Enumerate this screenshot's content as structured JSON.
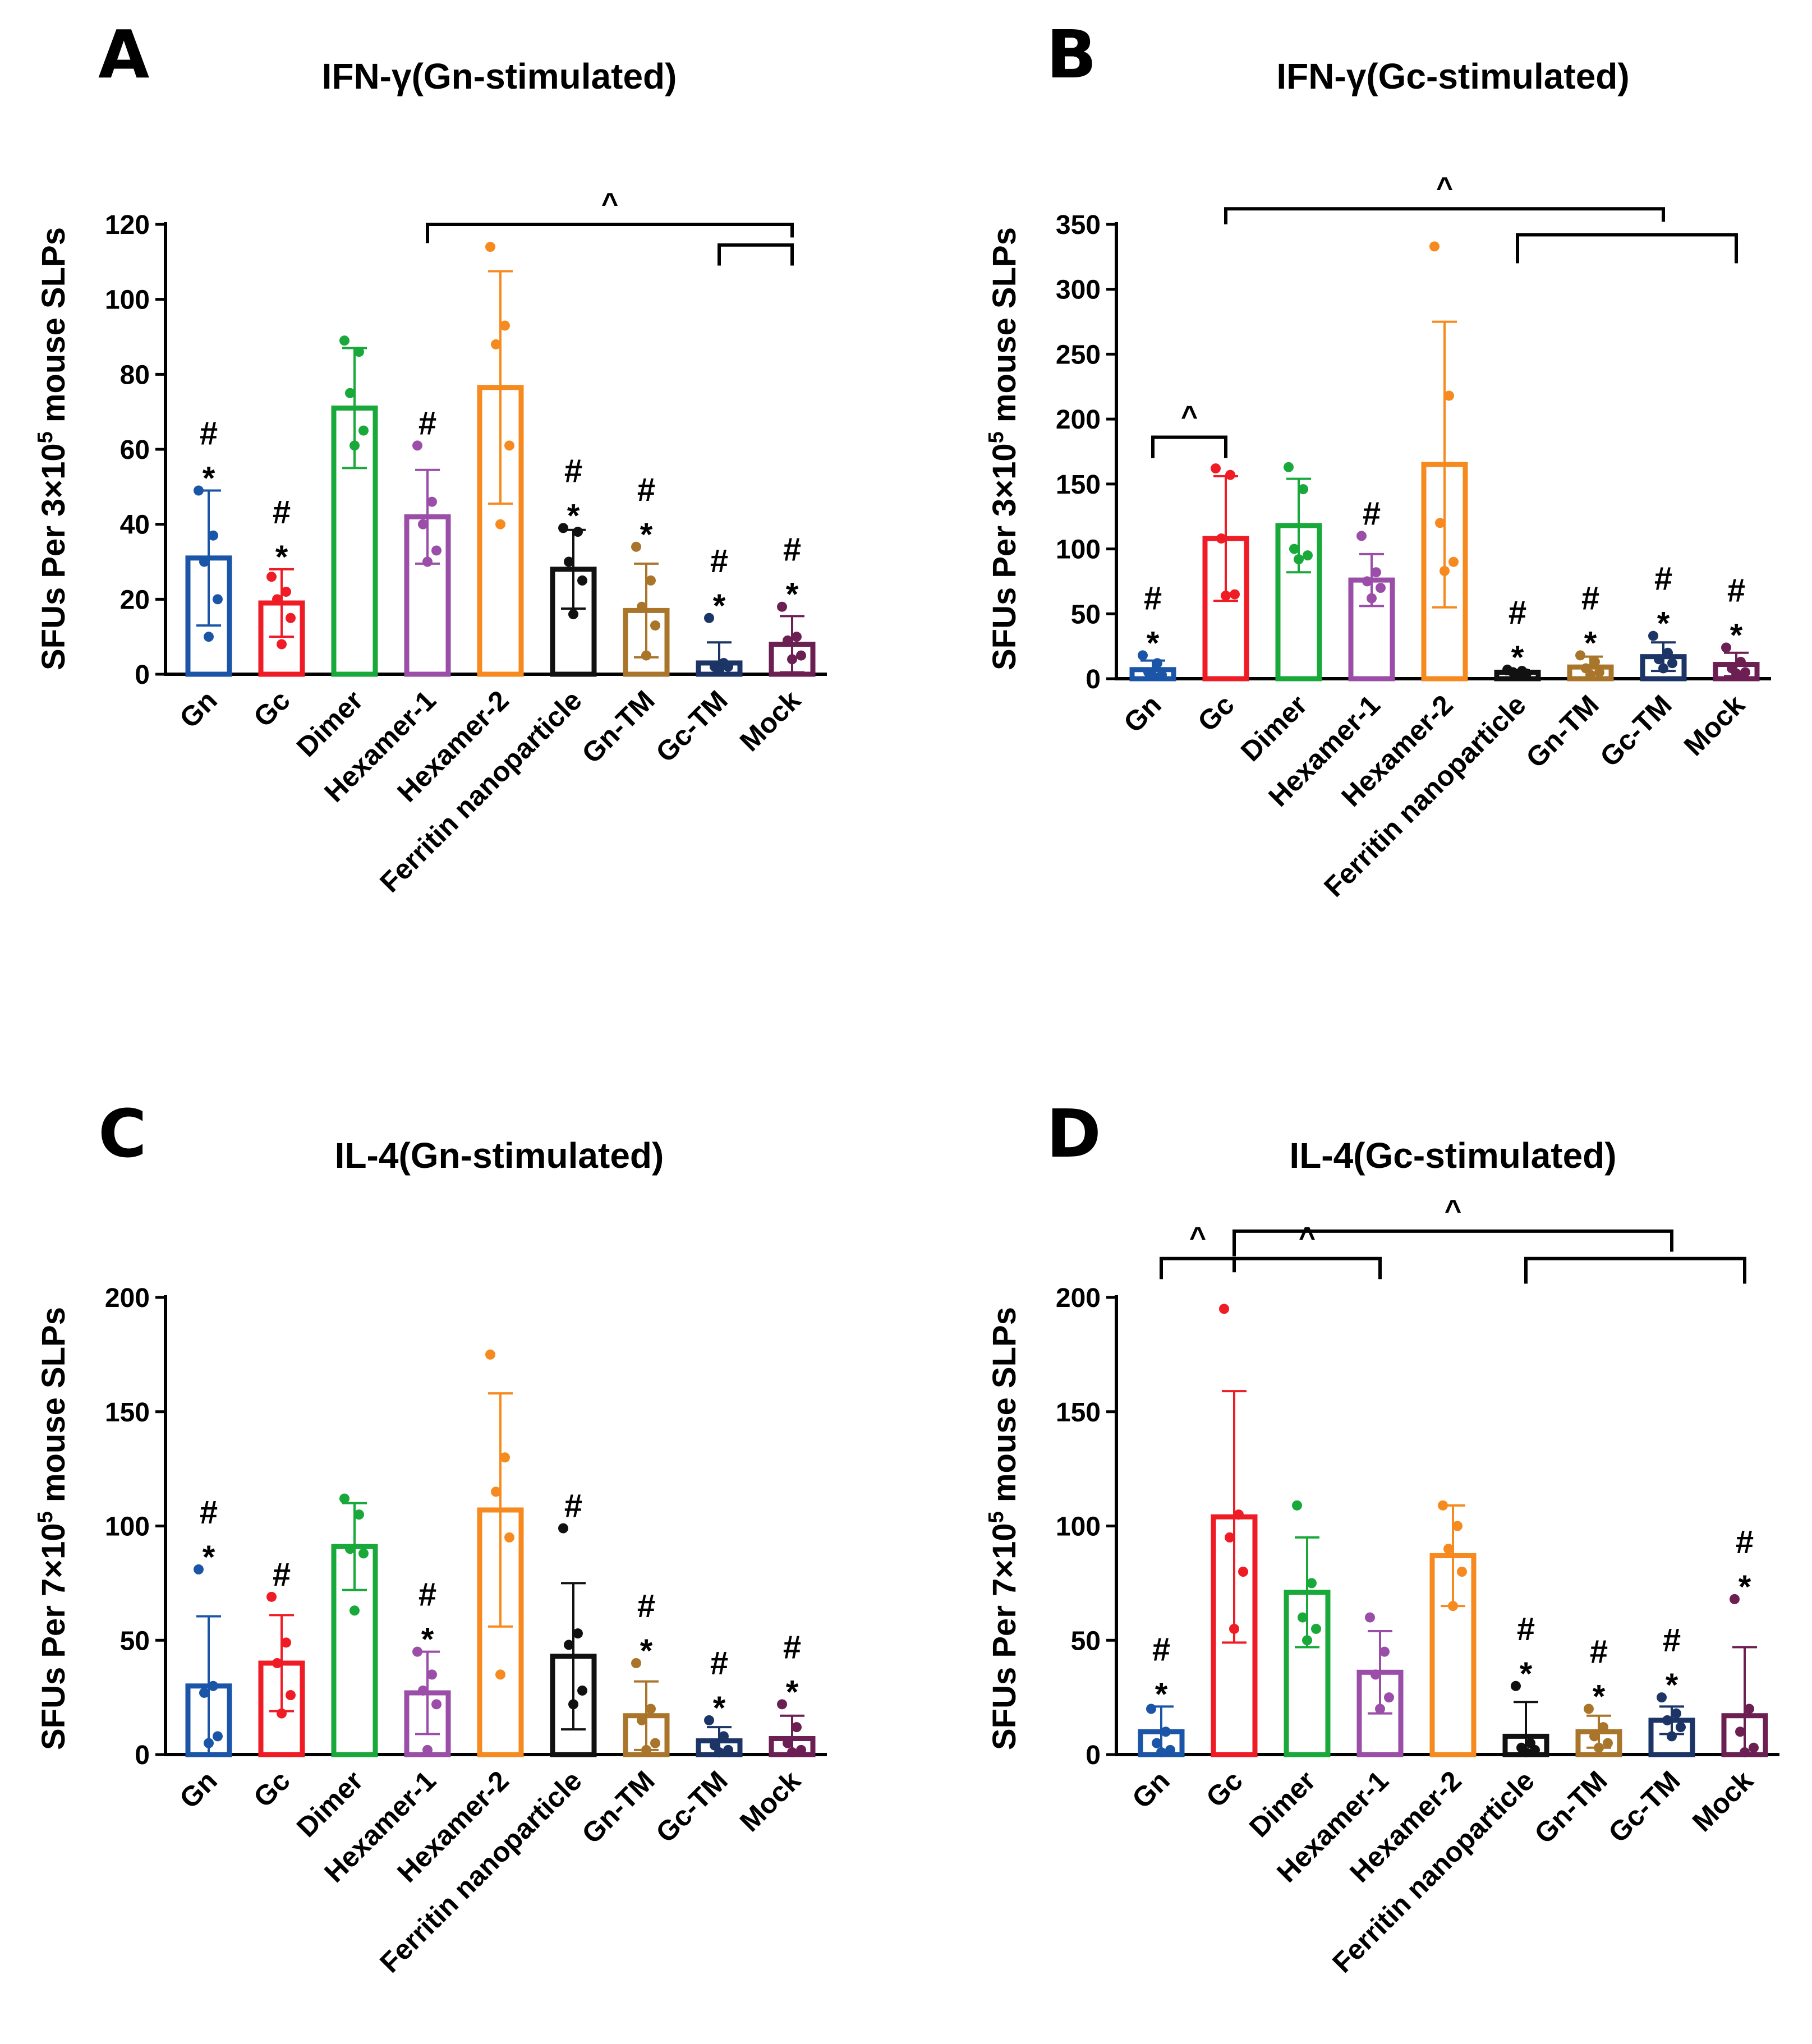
{
  "colors": {
    "Gn": "#1a55a8",
    "Gc": "#ef1c25",
    "Dimer": "#19a83a",
    "Hexamer-1": "#9a4ea8",
    "Hexamer-2": "#f68a1f",
    "Ferritin nanoparticle": "#111111",
    "Gn-TM": "#a8752a",
    "Gc-TM": "#1c3566",
    "Mock": "#6c1f52"
  },
  "categories": [
    "Gn",
    "Gc",
    "Dimer",
    "Hexamer-1",
    "Hexamer-2",
    "Ferritin nanoparticle",
    "Gn-TM",
    "Gc-TM",
    "Mock"
  ],
  "chart_data": [
    {
      "panel": "A",
      "type": "bar",
      "title": "IFN-γ(Gn-stimulated)",
      "ylabel_parts": [
        "SFUs Per 3×10",
        "5",
        " mouse SLPs"
      ],
      "ylim": [
        0,
        120
      ],
      "yticks": [
        0,
        20,
        40,
        60,
        80,
        100,
        120
      ],
      "categories": [
        "Gn",
        "Gc",
        "Dimer",
        "Hexamer-1",
        "Hexamer-2",
        "Ferritin nanoparticle",
        "Gn-TM",
        "Gc-TM",
        "Mock"
      ],
      "values": [
        31,
        19,
        71,
        42,
        76.5,
        28,
        17,
        3,
        8
      ],
      "errors": [
        18,
        9,
        16,
        12.5,
        31,
        10.5,
        12.5,
        5.5,
        7.5
      ],
      "points": [
        [
          49,
          37,
          30,
          20,
          10
        ],
        [
          26,
          22,
          20,
          15,
          8
        ],
        [
          89,
          86,
          75,
          65,
          61
        ],
        [
          61,
          46,
          40,
          33,
          30
        ],
        [
          114,
          93,
          88,
          61,
          40
        ],
        [
          39,
          38,
          30,
          25,
          16
        ],
        [
          34,
          25,
          18,
          13,
          5
        ],
        [
          15,
          3,
          2,
          2,
          1
        ],
        [
          18,
          10,
          9,
          5,
          4
        ]
      ],
      "annotations": [
        "#\n*",
        "#\n*",
        "",
        "#",
        "",
        "#\n*",
        "#\n*",
        "#\n*",
        "#\n*"
      ],
      "brackets": [
        {
          "x1": 3,
          "x2": 8,
          "y": 120,
          "label": "^",
          "stem1_to": 115,
          "stem2_to": 116.5
        },
        {
          "x1": 7,
          "x2": 8,
          "y": 114.5,
          "label": "",
          "stem1_to": 109,
          "stem2_to": 109
        }
      ]
    },
    {
      "panel": "B",
      "type": "bar",
      "title": "IFN-γ(Gc-stimulated)",
      "ylabel_parts": [
        "SFUs Per 3×10",
        "5",
        " mouse SLPs"
      ],
      "ylim": [
        0,
        350
      ],
      "yticks": [
        0,
        50,
        100,
        150,
        200,
        250,
        300,
        350
      ],
      "categories": [
        "Gn",
        "Gc",
        "Dimer",
        "Hexamer-1",
        "Hexamer-2",
        "Ferritin nanoparticle",
        "Gn-TM",
        "Gc-TM",
        "Mock"
      ],
      "values": [
        7,
        108,
        118,
        76,
        165,
        5,
        9,
        17,
        11
      ],
      "errors": [
        7,
        48,
        36,
        20,
        110,
        1.5,
        8,
        11,
        9
      ],
      "points": [
        [
          18,
          12,
          5,
          3,
          2
        ],
        [
          162,
          157,
          108,
          65,
          64
        ],
        [
          163,
          146,
          100,
          95,
          92
        ],
        [
          110,
          82,
          75,
          70,
          62
        ],
        [
          333,
          218,
          120,
          90,
          83
        ],
        [
          7,
          6,
          5,
          4,
          3
        ],
        [
          18,
          13,
          8,
          5,
          3
        ],
        [
          33,
          20,
          15,
          12,
          8
        ],
        [
          24,
          13,
          8,
          5,
          4
        ]
      ],
      "annotations": [
        "#\n*",
        "",
        "",
        "#",
        "",
        "#\n*",
        "#\n*",
        "#\n*",
        "#\n*"
      ],
      "brackets": [
        {
          "x1": 1,
          "x2": 7,
          "y": 362,
          "label": "^",
          "stem1_to": 350,
          "stem2_to": 352
        },
        {
          "x1": 5,
          "x2": 8,
          "y": 342,
          "label": "",
          "stem1_to": 320,
          "stem2_to": 320
        },
        {
          "x1": 0,
          "x2": 1,
          "y": 186,
          "label": "^",
          "stem1_to": 170,
          "stem2_to": 170
        }
      ]
    },
    {
      "panel": "C",
      "type": "bar",
      "title": "IL-4(Gn-stimulated)",
      "ylabel_parts": [
        "SFUs Per 7×10",
        "5",
        " mouse SLPs"
      ],
      "ylim": [
        0,
        200
      ],
      "yticks": [
        0,
        50,
        100,
        150,
        200
      ],
      "categories": [
        "Gn",
        "Gc",
        "Dimer",
        "Hexamer-1",
        "Hexamer-2",
        "Ferritin nanoparticle",
        "Gn-TM",
        "Gc-TM",
        "Mock"
      ],
      "values": [
        30,
        40,
        91,
        27,
        107,
        43,
        17,
        6,
        7
      ],
      "errors": [
        30.5,
        21,
        19,
        18,
        51,
        32,
        15,
        6,
        10
      ],
      "points": [
        [
          81,
          30,
          27,
          8,
          5
        ],
        [
          69,
          49,
          40,
          26,
          18
        ],
        [
          112,
          105,
          90,
          88,
          63
        ],
        [
          45,
          35,
          28,
          22,
          2
        ],
        [
          175,
          130,
          115,
          95,
          35
        ],
        [
          99,
          53,
          48,
          28,
          22
        ],
        [
          40,
          20,
          15,
          5,
          2
        ],
        [
          15,
          8,
          4,
          2,
          1
        ],
        [
          22,
          12,
          5,
          2,
          1
        ]
      ],
      "annotations": [
        "#\n*",
        "#",
        "",
        "#\n*",
        "",
        "#",
        "#\n*",
        "#\n*",
        "#\n*"
      ],
      "brackets": []
    },
    {
      "panel": "D",
      "type": "bar",
      "title": "IL-4(Gc-stimulated)",
      "ylabel_parts": [
        "SFUs Per 7×10",
        "5",
        " mouse SLPs"
      ],
      "ylim": [
        0,
        200
      ],
      "yticks": [
        0,
        50,
        100,
        150,
        200
      ],
      "categories": [
        "Gn",
        "Gc",
        "Dimer",
        "Hexamer-1",
        "Hexamer-2",
        "Ferritin nanoparticle",
        "Gn-TM",
        "Gc-TM",
        "Mock"
      ],
      "values": [
        10,
        104,
        71,
        36,
        87,
        8,
        10,
        15,
        17
      ],
      "errors": [
        11,
        55,
        24,
        18,
        22,
        15,
        7,
        6,
        30
      ],
      "points": [
        [
          20,
          10,
          5,
          2,
          1
        ],
        [
          195,
          105,
          95,
          80,
          55
        ],
        [
          109,
          75,
          60,
          55,
          50
        ],
        [
          60,
          45,
          35,
          25,
          20
        ],
        [
          109,
          100,
          90,
          80,
          65
        ],
        [
          30,
          5,
          3,
          2,
          1
        ],
        [
          20,
          12,
          8,
          5,
          3
        ],
        [
          25,
          18,
          15,
          12,
          8
        ],
        [
          68,
          20,
          10,
          3,
          1
        ]
      ],
      "annotations": [
        "#\n*",
        "",
        "",
        "",
        "",
        "#\n*",
        "#\n*",
        "#\n*",
        "#\n*"
      ],
      "brackets": [
        {
          "x1": 1,
          "x2": 7,
          "y": 229,
          "label": "^",
          "stem1_to": 218,
          "stem2_to": 220
        },
        {
          "x1": 5,
          "x2": 8,
          "y": 217,
          "label": "",
          "stem1_to": 206,
          "stem2_to": 206
        },
        {
          "x1": 0,
          "x2": 1,
          "y": 217,
          "label": "^",
          "stem1_to": 208,
          "stem2_to": 211
        },
        {
          "x1": 1,
          "x2": 3,
          "y": 217,
          "label": "^",
          "stem1_to": 211,
          "stem2_to": 208
        }
      ]
    }
  ]
}
